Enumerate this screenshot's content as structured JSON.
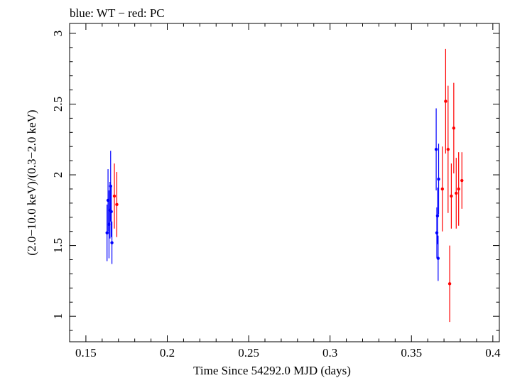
{
  "chart_data": {
    "type": "scatter",
    "title": "blue: WT − red: PC",
    "xlabel": "Time Since 54292.0 MJD (days)",
    "ylabel": "(2.0−10.0 keV)/(0.3−2.0 keV)",
    "xlim": [
      0.14,
      0.404
    ],
    "ylim": [
      0.82,
      3.07
    ],
    "x_ticks": [
      0.15,
      0.2,
      0.25,
      0.3,
      0.35,
      0.4
    ],
    "x_tick_labels": [
      "0.15",
      "0.2",
      "0.25",
      "0.3",
      "0.35",
      "0.4"
    ],
    "y_ticks": [
      1,
      1.5,
      2,
      2.5,
      3
    ],
    "y_tick_labels": [
      "1",
      "1.5",
      "2",
      "2.5",
      "3"
    ],
    "grid": false,
    "series": [
      {
        "name": "WT",
        "color": "#0000ff",
        "points": [
          {
            "x": 0.163,
            "y": 1.59,
            "err": 0.2
          },
          {
            "x": 0.1636,
            "y": 1.82,
            "err": 0.22
          },
          {
            "x": 0.1642,
            "y": 1.65,
            "err": 0.24
          },
          {
            "x": 0.1648,
            "y": 1.75,
            "err": 0.2
          },
          {
            "x": 0.1652,
            "y": 1.92,
            "err": 0.25
          },
          {
            "x": 0.1656,
            "y": 1.74,
            "err": 0.18
          },
          {
            "x": 0.166,
            "y": 1.52,
            "err": 0.15
          },
          {
            "x": 0.3652,
            "y": 2.18,
            "err": 0.29
          },
          {
            "x": 0.3656,
            "y": 1.59,
            "err": 0.18
          },
          {
            "x": 0.366,
            "y": 1.71,
            "err": 0.2
          },
          {
            "x": 0.3664,
            "y": 1.41,
            "err": 0.16
          },
          {
            "x": 0.3667,
            "y": 1.97,
            "err": 0.25
          }
        ]
      },
      {
        "name": "PC",
        "color": "#ff0000",
        "points": [
          {
            "x": 0.1675,
            "y": 1.85,
            "err": 0.23
          },
          {
            "x": 0.169,
            "y": 1.79,
            "err": 0.23
          },
          {
            "x": 0.369,
            "y": 1.9,
            "err": 0.3
          },
          {
            "x": 0.371,
            "y": 2.52,
            "err": 0.37
          },
          {
            "x": 0.3725,
            "y": 2.18,
            "err": 0.45
          },
          {
            "x": 0.3735,
            "y": 1.23,
            "err": 0.27
          },
          {
            "x": 0.3745,
            "y": 1.85,
            "err": 0.23
          },
          {
            "x": 0.376,
            "y": 2.33,
            "err": 0.32
          },
          {
            "x": 0.3775,
            "y": 1.87,
            "err": 0.25
          },
          {
            "x": 0.379,
            "y": 1.9,
            "err": 0.26
          },
          {
            "x": 0.381,
            "y": 1.96,
            "err": 0.2
          }
        ]
      }
    ]
  }
}
